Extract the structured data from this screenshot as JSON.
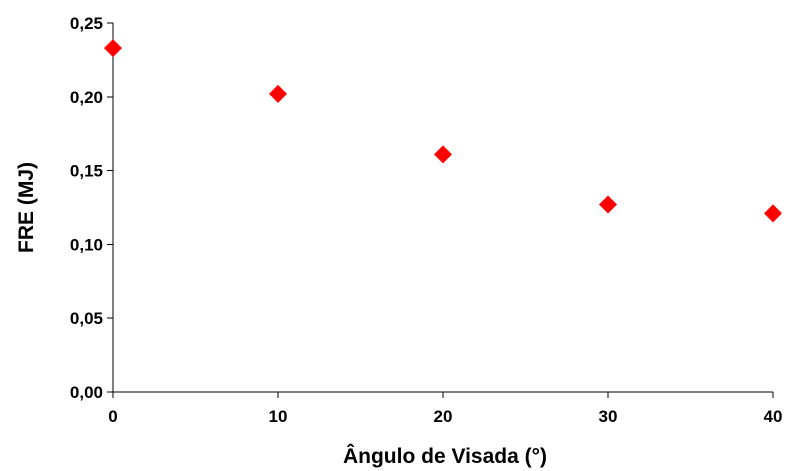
{
  "chart_data": {
    "type": "scatter",
    "title": "",
    "xlabel": "Ângulo de Visada (°)",
    "ylabel": "FRE (MJ)",
    "xlim": [
      0,
      40
    ],
    "ylim": [
      0,
      0.25
    ],
    "x_ticks": [
      "0",
      "10",
      "20",
      "30",
      "40"
    ],
    "y_ticks": [
      "0,00",
      "0,05",
      "0,10",
      "0,15",
      "0,20",
      "0,25"
    ],
    "grid": false,
    "legend": "none",
    "marker": "diamond",
    "marker_color": "#ff0000",
    "series": [
      {
        "x": [
          0,
          10,
          20,
          30,
          40
        ],
        "y": [
          0.233,
          0.202,
          0.161,
          0.127,
          0.121
        ]
      }
    ]
  }
}
